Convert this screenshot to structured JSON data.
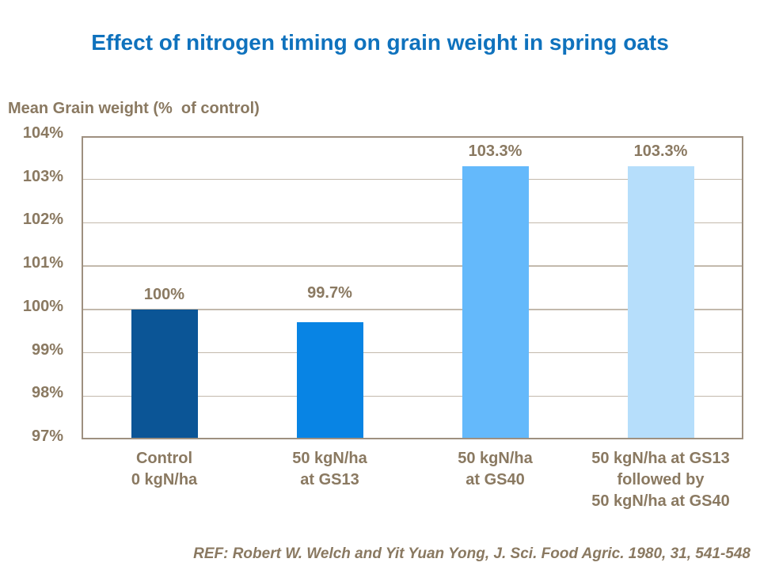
{
  "title": {
    "text": "Effect of nitrogen timing on grain weight in spring oats",
    "color": "#0f72bd"
  },
  "footer": {
    "reference": "REF: Robert W. Welch and Yit Yuan Yong, J. Sci. Food Agric. 1980, 31, 541-548"
  },
  "colors": {
    "title_text": "#0f72bd",
    "axis_text": "#8a7961",
    "plot_border": "#9e9080",
    "gridline": "#c3b9ac"
  },
  "chart_data": {
    "type": "bar",
    "title": "Effect of nitrogen timing on grain weight in spring oats",
    "y_axis_title": "Mean Grain weight (%  of control)",
    "xlabel": "",
    "ylabel": "Mean Grain weight (% of control)",
    "categories": [
      [
        "Control",
        "0 kgN/ha"
      ],
      [
        "50 kgN/ha",
        "at GS13"
      ],
      [
        "50 kgN/ha",
        "at GS40"
      ],
      [
        "50 kgN/ha at GS13",
        "followed by",
        "50 kgN/ha at GS40"
      ]
    ],
    "values": [
      100,
      99.7,
      103.3,
      103.3
    ],
    "value_labels": [
      "100%",
      "99.7%",
      "103.3%",
      "103.3%"
    ],
    "bar_colors": [
      "#0b5596",
      "#0884e4",
      "#64b9fb",
      "#b6defb"
    ],
    "ylim": [
      97,
      104
    ],
    "ytick_labels": [
      "104%",
      "103%",
      "102%",
      "101%",
      "100%",
      "99%",
      "98%",
      "97%"
    ],
    "ytick_values": [
      104,
      103,
      102,
      101,
      100,
      99,
      98,
      97
    ],
    "grid": "horizontal",
    "legend": "none"
  }
}
